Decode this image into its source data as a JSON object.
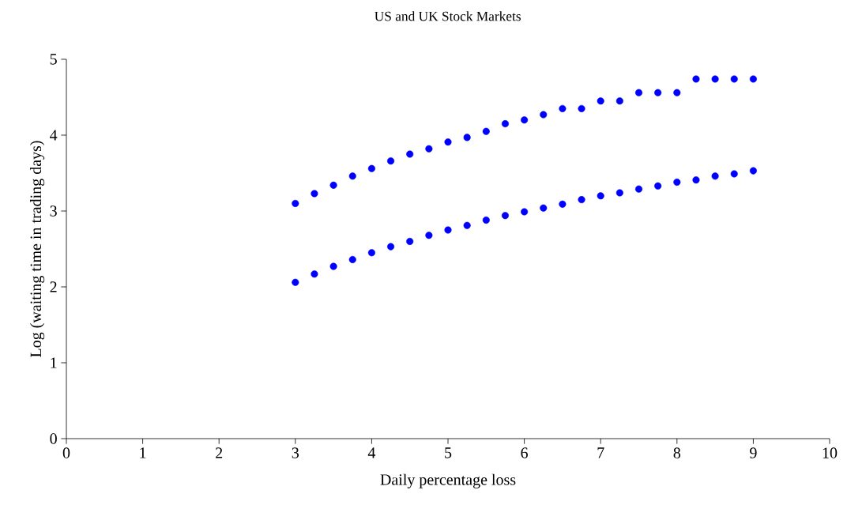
{
  "chart_data": {
    "type": "scatter",
    "title": "US and UK Stock Markets",
    "xlabel": "Daily percentage loss",
    "ylabel": "Log (waiting time in trading days)",
    "x": [
      3,
      3.25,
      3.5,
      3.75,
      4,
      4.25,
      4.5,
      4.75,
      5,
      5.25,
      5.5,
      5.75,
      6,
      6.25,
      6.5,
      6.75,
      7,
      7.25,
      7.5,
      7.75,
      8,
      8.25,
      8.5,
      8.75,
      9
    ],
    "series": [
      {
        "color": "#0000ff",
        "values": [
          3.1,
          3.23,
          3.34,
          3.46,
          3.56,
          3.66,
          3.75,
          3.82,
          3.91,
          3.97,
          4.05,
          4.15,
          4.2,
          4.27,
          4.35,
          4.35,
          4.45,
          4.45,
          4.56,
          4.56,
          4.56,
          4.74,
          4.74,
          4.74,
          4.74
        ]
      },
      {
        "color": "#0000ff",
        "values": [
          2.06,
          2.17,
          2.27,
          2.36,
          2.45,
          2.53,
          2.6,
          2.68,
          2.75,
          2.81,
          2.88,
          2.94,
          2.99,
          3.04,
          3.09,
          3.15,
          3.2,
          3.24,
          3.29,
          3.33,
          3.38,
          3.41,
          3.46,
          3.49,
          3.53
        ]
      }
    ],
    "xlim": [
      0,
      10
    ],
    "ylim": [
      0,
      5
    ],
    "xticks": [
      0,
      1,
      2,
      3,
      4,
      5,
      6,
      7,
      8,
      9,
      10
    ],
    "yticks": [
      0,
      1,
      2,
      3,
      4,
      5
    ],
    "marker": "circle"
  }
}
